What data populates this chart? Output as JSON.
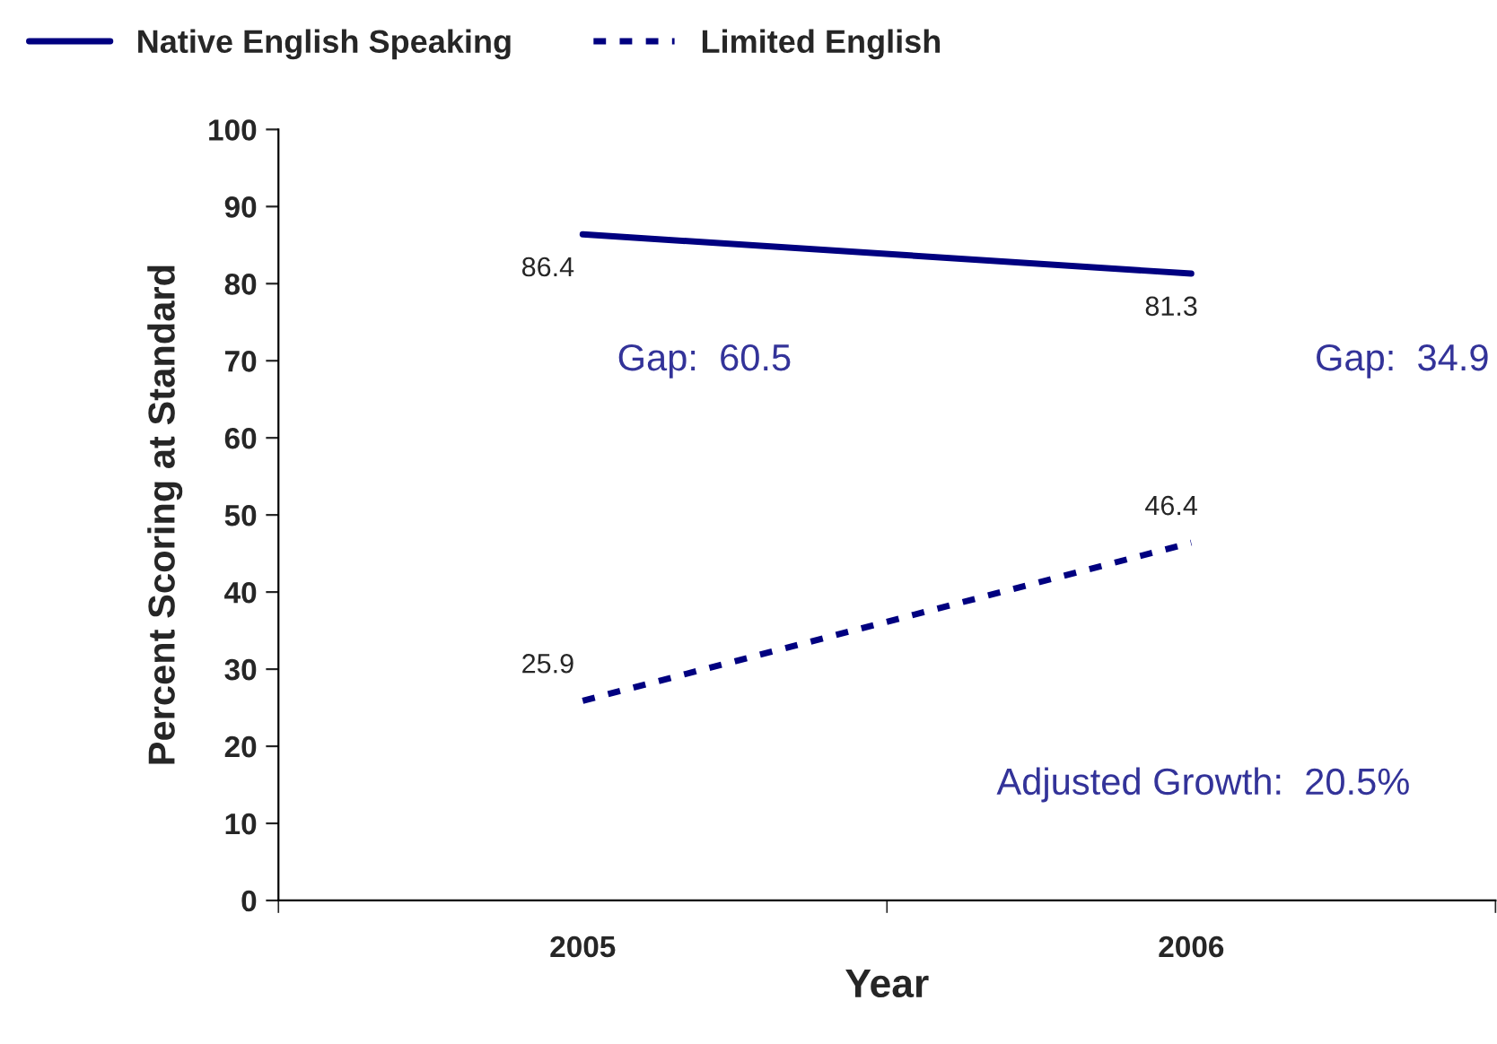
{
  "chart_data": {
    "type": "line",
    "xlabel": "Year",
    "ylabel": "Percent Scoring at Standard",
    "categories": [
      "2005",
      "2006"
    ],
    "series": [
      {
        "name": "Native English Speaking",
        "color": "#000080",
        "values": [
          86.4,
          81.3
        ],
        "line_style": "solid"
      },
      {
        "name": "Limited English",
        "color": "#000080",
        "values": [
          25.9,
          46.4
        ],
        "line_style": "dotted"
      }
    ],
    "ylim": [
      0,
      100
    ],
    "yticks": [
      0,
      10,
      20,
      30,
      40,
      50,
      60,
      70,
      80,
      90,
      100
    ],
    "data_labels": true,
    "grid": false,
    "legend": "top left",
    "marker": "none",
    "annotations": [
      "Gap:  60.5",
      "Gap:  34.9",
      "Adjusted Growth:  20.5%"
    ]
  }
}
